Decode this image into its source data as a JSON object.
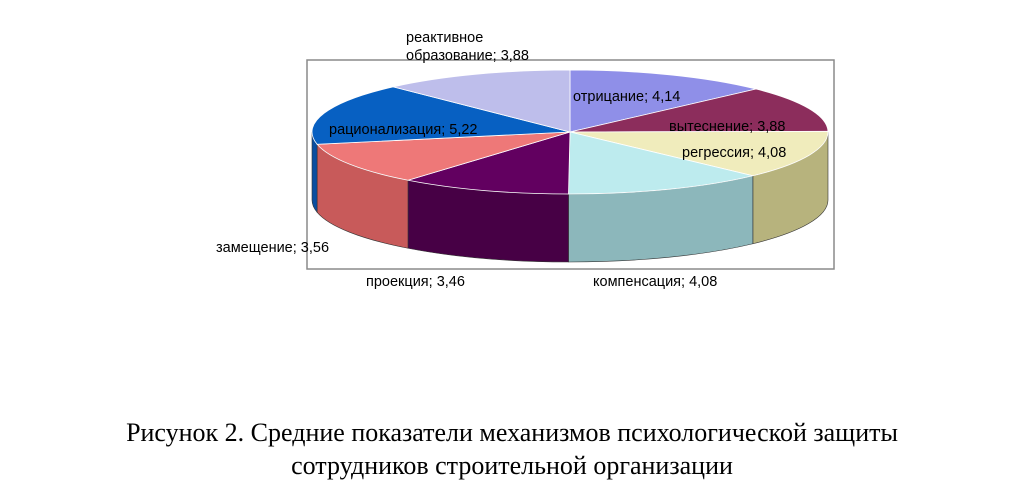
{
  "chart_data": {
    "type": "pie",
    "style": "3d-exploded-none",
    "categories": [
      "отрицание",
      "вытеснение",
      "регрессия",
      "компенсация",
      "проекция",
      "замещение",
      "рационализация",
      "реактивное образование"
    ],
    "values": [
      4.14,
      3.88,
      4.08,
      4.08,
      3.46,
      3.56,
      5.22,
      3.88
    ],
    "labels": [
      "отрицание; 4,14",
      "вытеснение; 3,88",
      "регрессия; 4,08",
      "компенсация; 4,08",
      "проекция; 3,46",
      "замещение; 3,56",
      "рационализация; 5,22",
      "реактивное образование; 3,88"
    ],
    "label_lines": {
      "reactive_line1": "реактивное",
      "reactive_line2": "образование; 3,88"
    },
    "colors": [
      "#8f8fe8",
      "#8c2d5c",
      "#f0ecbc",
      "#bdebee",
      "#620060",
      "#ee7878",
      "#0760c2",
      "#bebeeb"
    ],
    "side_colors": [
      "#7070c0",
      "#6e1f47",
      "#b7b37d",
      "#8cb7bb",
      "#470045",
      "#c85a5a",
      "#0a4ea0",
      "#9d9dc6"
    ],
    "start_angle_deg": -90,
    "direction": "clockwise",
    "legend": "none"
  },
  "caption": {
    "line1": "Рисунок 2. Средние показатели  механизмов психологической защиты",
    "line2": "сотрудников строительной организации"
  }
}
